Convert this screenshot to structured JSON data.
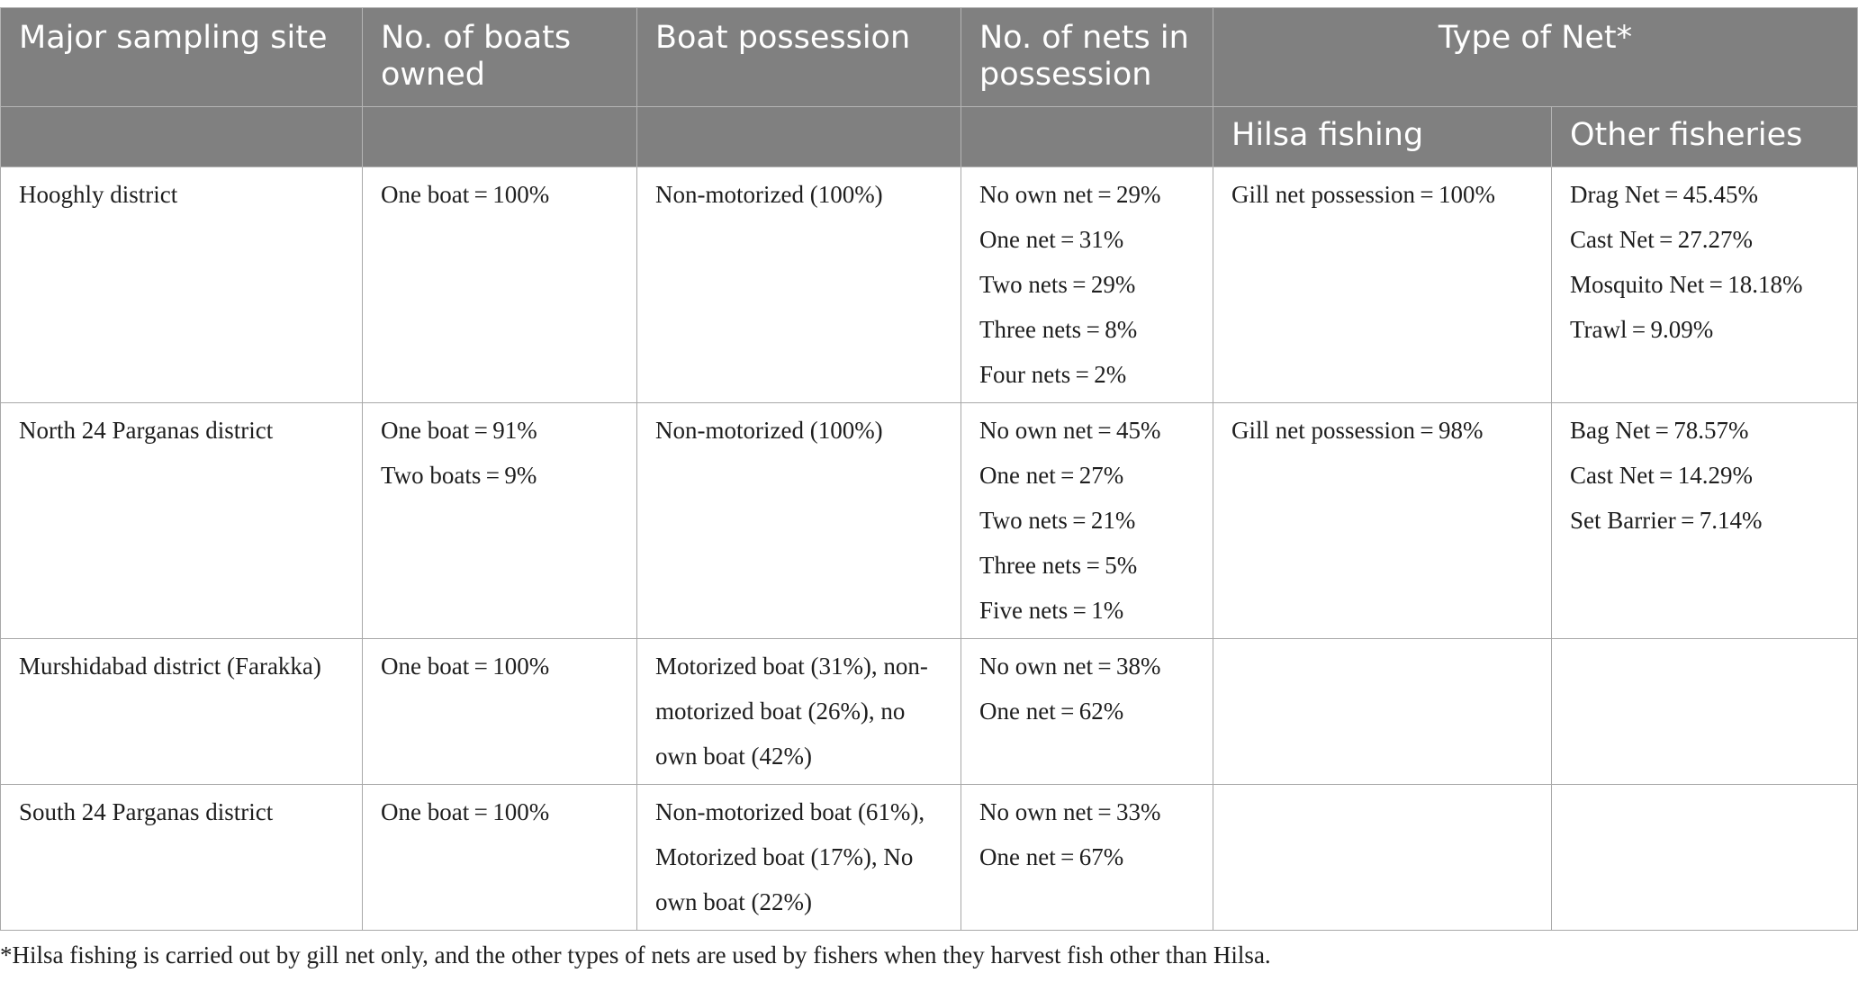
{
  "header": {
    "site": "Major sampling site",
    "boats_owned": "No. of boats owned",
    "boat_possession": "Boat possession",
    "nets_possession": "No. of nets in possession",
    "type_of_net": "Type of Net*",
    "hilsa_fishing": "Hilsa fishing",
    "other_fisheries": "Other fisheries"
  },
  "rows": [
    {
      "site": "Hooghly district",
      "boats": [
        "One boat = 100%"
      ],
      "possession": [
        "Non-motorized (100%)"
      ],
      "nets": [
        "No own net = 29%",
        "One net = 31%",
        "Two nets = 29%",
        "Three nets = 8%",
        "Four nets = 2%"
      ],
      "hilsa": [
        "Gill net possession = 100%"
      ],
      "other": [
        "Drag Net = 45.45%",
        "Cast Net = 27.27%",
        "Mosquito Net = 18.18%",
        "Trawl = 9.09%"
      ]
    },
    {
      "site": "North 24 Parganas district",
      "boats": [
        "One boat = 91%",
        "Two boats = 9%"
      ],
      "possession": [
        "Non-motorized (100%)"
      ],
      "nets": [
        "No own net = 45%",
        "One net = 27%",
        "Two nets = 21%",
        "Three nets = 5%",
        "Five nets = 1%"
      ],
      "hilsa": [
        "Gill net possession = 98%"
      ],
      "other": [
        "Bag Net = 78.57%",
        "Cast Net = 14.29%",
        "Set Barrier = 7.14%"
      ]
    },
    {
      "site": "Murshidabad district (Farakka)",
      "boats": [
        "One boat = 100%"
      ],
      "possession": [
        "Motorized boat (31%), non-motorized boat (26%), no own boat (42%)"
      ],
      "nets": [
        "No own net = 38%",
        "One net = 62%"
      ],
      "hilsa": [],
      "other": []
    },
    {
      "site": "South 24 Parganas district",
      "boats": [
        "One boat = 100%"
      ],
      "possession": [
        "Non-motorized boat (61%), Motorized boat (17%), No own boat (22%)"
      ],
      "nets": [
        "No own net = 33%",
        "One net = 67%"
      ],
      "hilsa": [],
      "other": []
    }
  ],
  "footnote": "*Hilsa fishing is carried out by gill net only, and the other types of nets are used by fishers when they harvest fish other than Hilsa."
}
